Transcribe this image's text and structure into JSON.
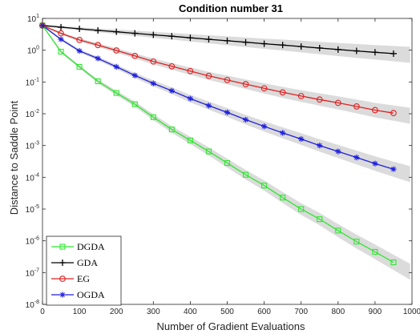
{
  "chart_data": {
    "type": "line",
    "title": "Condition number 31",
    "xlabel": "Number of Gradient Evaluations",
    "ylabel": "Distance to Saddle Point",
    "xlim": [
      0,
      1000
    ],
    "ylim_exponents": [
      -8,
      1
    ],
    "yscale": "log",
    "xticks": [
      "0",
      "100",
      "200",
      "300",
      "400",
      "500",
      "600",
      "700",
      "800",
      "900",
      "1000"
    ],
    "yticks": [
      {
        "base": "10",
        "exp": "1"
      },
      {
        "base": "10",
        "exp": "0"
      },
      {
        "base": "10",
        "exp": "-1"
      },
      {
        "base": "10",
        "exp": "-2"
      },
      {
        "base": "10",
        "exp": "-3"
      },
      {
        "base": "10",
        "exp": "-4"
      },
      {
        "base": "10",
        "exp": "-5"
      },
      {
        "base": "10",
        "exp": "-6"
      },
      {
        "base": "10",
        "exp": "-7"
      },
      {
        "base": "10",
        "exp": "-8"
      }
    ],
    "legend_position": "bottom-left",
    "x": [
      0,
      50,
      100,
      150,
      200,
      250,
      300,
      350,
      400,
      450,
      500,
      550,
      600,
      650,
      700,
      750,
      800,
      850,
      900,
      950
    ],
    "series": [
      {
        "name": "DGDA",
        "color": "#2ee82e",
        "marker": "square",
        "values": [
          6,
          0.9,
          0.3,
          0.105,
          0.045,
          0.02,
          0.0078,
          0.0032,
          0.00145,
          0.00065,
          0.00028,
          0.00012,
          5.5e-05,
          2.3e-05,
          1e-05,
          4.8e-06,
          2.1e-06,
          9.5e-07,
          4.5e-07,
          2.1e-07
        ]
      },
      {
        "name": "GDA",
        "color": "#000000",
        "marker": "plus",
        "values": [
          6,
          5.3,
          4.7,
          4.2,
          3.8,
          3.4,
          3.05,
          2.75,
          2.45,
          2.2,
          1.98,
          1.78,
          1.6,
          1.45,
          1.3,
          1.17,
          1.05,
          0.95,
          0.86,
          0.78
        ]
      },
      {
        "name": "EG",
        "color": "#e02020",
        "marker": "circle",
        "values": [
          6,
          3.4,
          2.1,
          1.45,
          0.98,
          0.66,
          0.44,
          0.31,
          0.22,
          0.155,
          0.115,
          0.085,
          0.063,
          0.047,
          0.036,
          0.028,
          0.022,
          0.017,
          0.013,
          0.0105
        ]
      },
      {
        "name": "OGDA",
        "color": "#1f1fe0",
        "marker": "star",
        "values": [
          6,
          2.2,
          0.95,
          0.55,
          0.3,
          0.16,
          0.09,
          0.053,
          0.03,
          0.018,
          0.011,
          0.0065,
          0.004,
          0.0025,
          0.0016,
          0.001,
          0.00065,
          0.00042,
          0.00027,
          0.00018
        ]
      }
    ]
  }
}
